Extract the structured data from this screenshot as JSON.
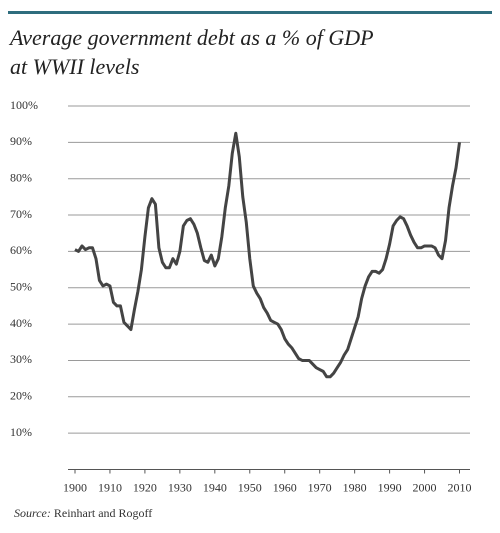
{
  "chart_data": {
    "type": "line",
    "title_lines": [
      "Average government debt as a % of GDP",
      "at WWII levels"
    ],
    "source_label": "Source:",
    "source": "Reinhart and Rogoff",
    "color": "#444444",
    "grid": true,
    "x": [
      1900,
      1901,
      1902,
      1903,
      1904,
      1905,
      1906,
      1907,
      1908,
      1909,
      1910,
      1911,
      1912,
      1913,
      1914,
      1915,
      1916,
      1917,
      1918,
      1919,
      1920,
      1921,
      1922,
      1923,
      1924,
      1925,
      1926,
      1927,
      1928,
      1929,
      1930,
      1931,
      1932,
      1933,
      1934,
      1935,
      1936,
      1937,
      1938,
      1939,
      1940,
      1941,
      1942,
      1943,
      1944,
      1945,
      1946,
      1947,
      1948,
      1949,
      1950,
      1951,
      1952,
      1953,
      1954,
      1955,
      1956,
      1957,
      1958,
      1959,
      1960,
      1961,
      1962,
      1963,
      1964,
      1965,
      1966,
      1967,
      1968,
      1969,
      1970,
      1971,
      1972,
      1973,
      1974,
      1975,
      1976,
      1977,
      1978,
      1979,
      1980,
      1981,
      1982,
      1983,
      1984,
      1985,
      1986,
      1987,
      1988,
      1989,
      1990,
      1991,
      1992,
      1993,
      1994,
      1995,
      1996,
      1997,
      1998,
      1999,
      2000,
      2001,
      2002,
      2003,
      2004,
      2005,
      2006,
      2007,
      2008,
      2009,
      2010
    ],
    "values": [
      60.5,
      60,
      61.5,
      60.5,
      61,
      61,
      58,
      52,
      50.5,
      51,
      50.5,
      46,
      45,
      45,
      40.5,
      39.5,
      38.5,
      44,
      49,
      55,
      64,
      72,
      74.5,
      73,
      61,
      57,
      55.5,
      55.5,
      58,
      56.5,
      60,
      67,
      68.5,
      69,
      67.5,
      65,
      61,
      57.5,
      57,
      59,
      56,
      58,
      64,
      72,
      78,
      87,
      92.5,
      86,
      75,
      68,
      58,
      50.5,
      48.5,
      47,
      44.5,
      43,
      41,
      40.5,
      40,
      38.5,
      36,
      34.5,
      33.5,
      32,
      30.5,
      30,
      30,
      30,
      29,
      28,
      27.5,
      27,
      25.5,
      25.5,
      26.5,
      28,
      29.5,
      31.5,
      33,
      36,
      39,
      42,
      47,
      50.5,
      53,
      54.5,
      54.5,
      54,
      55,
      58,
      62,
      67,
      68.5,
      69.5,
      69,
      67,
      64.5,
      62.5,
      61,
      61,
      61.5,
      61.5,
      61.5,
      61,
      59,
      58,
      63,
      72,
      78,
      83,
      90
    ],
    "xlim": [
      1898,
      2013
    ],
    "xticks": [
      1900,
      1910,
      1920,
      1930,
      1940,
      1950,
      1960,
      1970,
      1980,
      1990,
      2000,
      2010
    ],
    "ylim": [
      0,
      100
    ],
    "yticks": [
      {
        "value": 10,
        "label": "10%"
      },
      {
        "value": 20,
        "label": "20%"
      },
      {
        "value": 30,
        "label": "30%"
      },
      {
        "value": 40,
        "label": "40%"
      },
      {
        "value": 50,
        "label": "50%"
      },
      {
        "value": 60,
        "label": "60%"
      },
      {
        "value": 70,
        "label": "70%"
      },
      {
        "value": 80,
        "label": "80%"
      },
      {
        "value": 90,
        "label": "90%"
      },
      {
        "value": 100,
        "label": "100%"
      }
    ]
  }
}
